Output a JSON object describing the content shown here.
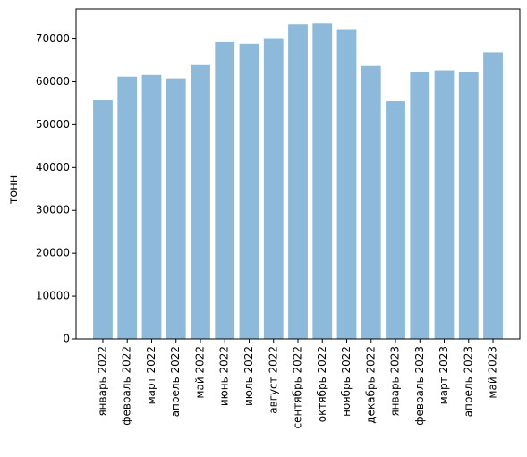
{
  "chart_data": {
    "type": "bar",
    "title": "",
    "xlabel": "",
    "ylabel": "тонн",
    "ylim": [
      0,
      77000
    ],
    "yticks": [
      0,
      10000,
      20000,
      30000,
      40000,
      50000,
      60000,
      70000
    ],
    "ytick_labels": [
      "0",
      "10000",
      "20000",
      "30000",
      "40000",
      "50000",
      "60000",
      "70000"
    ],
    "categories": [
      "январь 2022",
      "февраль 2022",
      "март 2022",
      "апрель 2022",
      "май 2022",
      "июнь 2022",
      "июль 2022",
      "август 2022",
      "сентябрь 2022",
      "октябрь 2022",
      "ноябрь 2022",
      "декабрь 2022",
      "январь 2023",
      "февраль 2023",
      "март 2023",
      "апрель 2023",
      "май 2023"
    ],
    "values": [
      55700,
      61200,
      61600,
      60800,
      63900,
      69300,
      68900,
      70000,
      73400,
      73600,
      72300,
      63700,
      55500,
      62400,
      62700,
      62300,
      66900
    ],
    "bar_color": "#8db9da",
    "grid": false,
    "legend": "none"
  }
}
